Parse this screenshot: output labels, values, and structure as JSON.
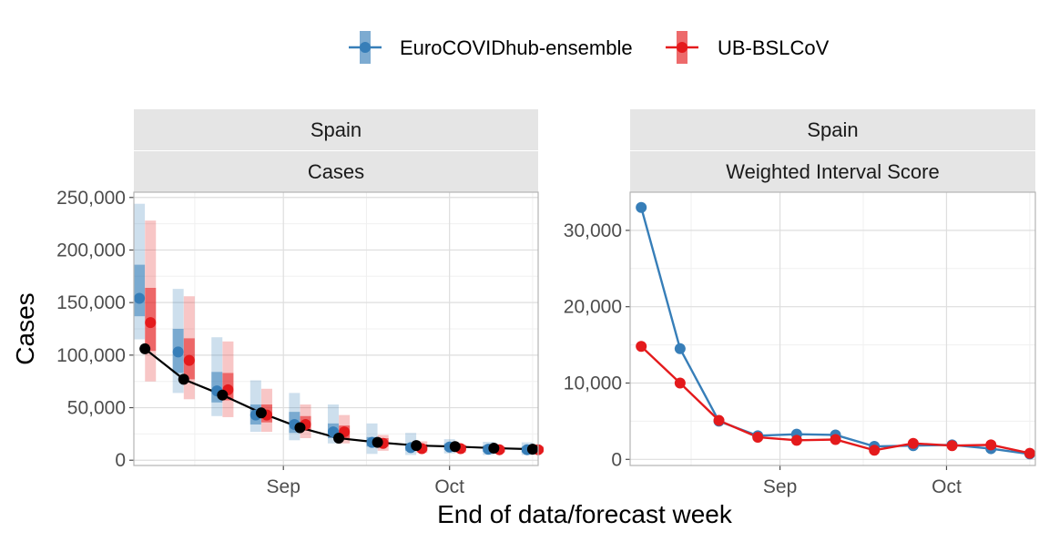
{
  "legend": {
    "items": [
      {
        "label": "EuroCOVIDhub-ensemble",
        "color": "#377eb8"
      },
      {
        "label": "UB-BSLCoV",
        "color": "#e41a1c"
      }
    ]
  },
  "x_axis_title": "End of data/forecast week",
  "chart_data": [
    {
      "type": "line",
      "facet_labels": [
        "Spain",
        "Cases"
      ],
      "ylabel": "Cases",
      "xlabel": "End of data/forecast week",
      "x_ticks": [
        {
          "label": "Sep",
          "value": "2021-09-01"
        },
        {
          "label": "Oct",
          "value": "2021-10-01"
        }
      ],
      "xlim": [
        "2021-08-05",
        "2021-10-17"
      ],
      "ylim": [
        -5000,
        255000
      ],
      "y_ticks": [
        0,
        50000,
        100000,
        150000,
        200000,
        250000
      ],
      "y_tick_labels": [
        "0",
        "50,000",
        "100,000",
        "150,000",
        "200,000",
        "250,000"
      ],
      "grid": true,
      "observed": {
        "x": [
          "2021-08-07",
          "2021-08-14",
          "2021-08-21",
          "2021-08-28",
          "2021-09-04",
          "2021-09-11",
          "2021-09-18",
          "2021-09-25",
          "2021-10-02",
          "2021-10-09",
          "2021-10-16"
        ],
        "y": [
          106000,
          77000,
          62000,
          45000,
          31000,
          21000,
          17000,
          14000,
          13000,
          11500,
          10500
        ]
      },
      "series": [
        {
          "name": "EuroCOVIDhub-ensemble",
          "color": "#377eb8",
          "x": [
            "2021-08-07",
            "2021-08-14",
            "2021-08-21",
            "2021-08-28",
            "2021-09-04",
            "2021-09-11",
            "2021-09-18",
            "2021-09-25",
            "2021-10-02",
            "2021-10-09",
            "2021-10-16"
          ],
          "median": [
            154000,
            103000,
            66000,
            43000,
            34000,
            27000,
            17000,
            12000,
            12500,
            10500,
            10000
          ],
          "inner_interval": [
            [
              137000,
              186000
            ],
            [
              83000,
              125000
            ],
            [
              55000,
              84000
            ],
            [
              34000,
              53000
            ],
            [
              26000,
              46000
            ],
            [
              21000,
              35000
            ],
            [
              13000,
              22000
            ],
            [
              9000,
              16000
            ],
            [
              10000,
              16000
            ],
            [
              8000,
              14000
            ],
            [
              7500,
              13000
            ]
          ],
          "outer_interval": [
            [
              115000,
              244000
            ],
            [
              64000,
              163000
            ],
            [
              42000,
              117000
            ],
            [
              27000,
              76000
            ],
            [
              19000,
              64000
            ],
            [
              16000,
              53000
            ],
            [
              6000,
              35000
            ],
            [
              5000,
              26000
            ],
            [
              6500,
              20000
            ],
            [
              5000,
              17500
            ],
            [
              5000,
              17000
            ]
          ]
        },
        {
          "name": "UB-BSLCoV",
          "color": "#e41a1c",
          "x": [
            "2021-08-07",
            "2021-08-14",
            "2021-08-21",
            "2021-08-28",
            "2021-09-04",
            "2021-09-11",
            "2021-09-18",
            "2021-09-25",
            "2021-10-02",
            "2021-10-09",
            "2021-10-16"
          ],
          "median": [
            131000,
            95000,
            67000,
            43000,
            34000,
            27000,
            16000,
            11000,
            11000,
            10000,
            10000
          ],
          "inner_interval": [
            [
              104000,
              164000
            ],
            [
              77000,
              116000
            ],
            [
              57000,
              83000
            ],
            [
              36000,
              53000
            ],
            [
              28000,
              42000
            ],
            [
              21000,
              33000
            ],
            [
              13000,
              21000
            ],
            [
              9000,
              15000
            ],
            [
              9000,
              14000
            ],
            [
              8000,
              12500
            ],
            [
              8000,
              12500
            ]
          ],
          "outer_interval": [
            [
              75000,
              228000
            ],
            [
              58000,
              156000
            ],
            [
              41000,
              113000
            ],
            [
              27000,
              68000
            ],
            [
              21000,
              53000
            ],
            [
              16000,
              43000
            ],
            [
              9000,
              24000
            ],
            [
              7000,
              18000
            ],
            [
              7000,
              15000
            ],
            [
              7000,
              13500
            ],
            [
              7000,
              13500
            ]
          ]
        }
      ]
    },
    {
      "type": "line",
      "facet_labels": [
        "Spain",
        "Weighted Interval Score"
      ],
      "ylabel": "",
      "xlabel": "End of data/forecast week",
      "x_ticks": [
        {
          "label": "Sep",
          "value": "2021-09-01"
        },
        {
          "label": "Oct",
          "value": "2021-10-01"
        }
      ],
      "xlim": [
        "2021-08-05",
        "2021-10-17"
      ],
      "ylim": [
        -800,
        35000
      ],
      "y_ticks": [
        0,
        10000,
        20000,
        30000
      ],
      "y_tick_labels": [
        "0",
        "10,000",
        "20,000",
        "30,000"
      ],
      "grid": true,
      "series": [
        {
          "name": "EuroCOVIDhub-ensemble",
          "color": "#377eb8",
          "x": [
            "2021-08-07",
            "2021-08-14",
            "2021-08-21",
            "2021-08-28",
            "2021-09-04",
            "2021-09-11",
            "2021-09-18",
            "2021-09-25",
            "2021-10-02",
            "2021-10-09",
            "2021-10-16"
          ],
          "y": [
            33000,
            14500,
            5000,
            3100,
            3300,
            3200,
            1700,
            1800,
            1900,
            1400,
            700
          ]
        },
        {
          "name": "UB-BSLCoV",
          "color": "#e41a1c",
          "x": [
            "2021-08-07",
            "2021-08-14",
            "2021-08-21",
            "2021-08-28",
            "2021-09-04",
            "2021-09-11",
            "2021-09-18",
            "2021-09-25",
            "2021-10-02",
            "2021-10-09",
            "2021-10-16"
          ],
          "y": [
            14800,
            10000,
            5100,
            2900,
            2500,
            2600,
            1200,
            2100,
            1800,
            1900,
            800
          ]
        }
      ]
    }
  ]
}
